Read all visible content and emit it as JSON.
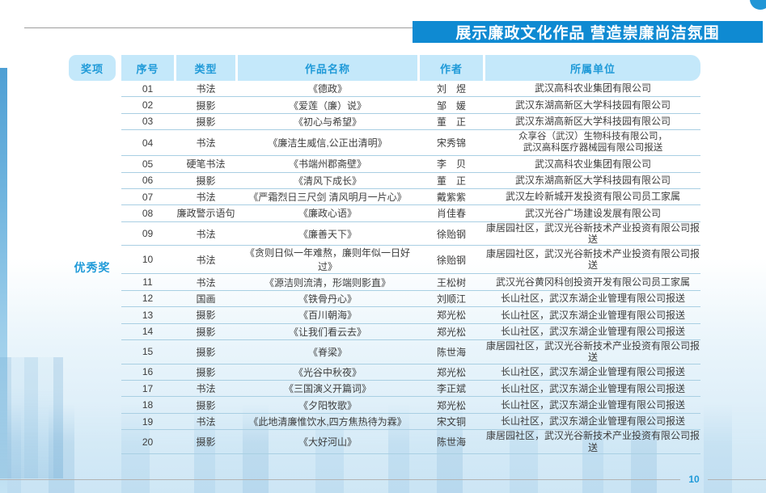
{
  "banner": {
    "title": "展示廉政文化作品 营造崇廉尚洁氛围"
  },
  "page_number": "10",
  "colors": {
    "banner_blue": "#0f8ad2",
    "header_bg": "#c4e8fa",
    "accent_blue": "#1f9ad8",
    "row_line": "#a9cfe3",
    "body_text": "#3d3d3d"
  },
  "table": {
    "headers": {
      "award": "奖项",
      "no": "序号",
      "type": "类型",
      "title": "作品名称",
      "author": "作者",
      "unit": "所属单位"
    },
    "award_label": "优秀奖",
    "rows": [
      {
        "no": "01",
        "type": "书法",
        "title": "《德政》",
        "author": "刘　煜",
        "unit": "武汉高科农业集团有限公司"
      },
      {
        "no": "02",
        "type": "摄影",
        "title": "《爱莲（廉）说》",
        "author": "邹　媛",
        "unit": "武汉东湖高新区大学科技园有限公司"
      },
      {
        "no": "03",
        "type": "摄影",
        "title": "《初心与希望》",
        "author": "董　正",
        "unit": "武汉东湖高新区大学科技园有限公司"
      },
      {
        "no": "04",
        "type": "书法",
        "title": "《廉洁生威信,公正出清明》",
        "author": "宋秀锦",
        "unit": [
          "众享谷（武汉）生物科技有限公司，",
          "武汉高科医疗器械园有限公司报送"
        ]
      },
      {
        "no": "05",
        "type": "硬笔书法",
        "title": "《书端州郡斋壁》",
        "author": "李　贝",
        "unit": "武汉高科农业集团有限公司"
      },
      {
        "no": "06",
        "type": "摄影",
        "title": "《清风下成长》",
        "author": "董　正",
        "unit": "武汉东湖高新区大学科技园有限公司"
      },
      {
        "no": "07",
        "type": "书法",
        "title": "《严霜烈日三尺剑 清风明月一片心》",
        "author": "戴紫紫",
        "unit": "武汉左岭新城开发投资有限公司员工家属"
      },
      {
        "no": "08",
        "type": "廉政警示语句",
        "title": "《廉政心语》",
        "author": "肖佳春",
        "unit": "武汉光谷广场建设发展有限公司"
      },
      {
        "no": "09",
        "type": "书法",
        "title": "《廉善天下》",
        "author": "徐贻钢",
        "unit": "康居园社区，武汉光谷新技术产业投资有限公司报送"
      },
      {
        "no": "10",
        "type": "书法",
        "title": "《贪则日似一年难熬，廉则年似一日好过》",
        "author": "徐贻钢",
        "unit": "康居园社区，武汉光谷新技术产业投资有限公司报送"
      },
      {
        "no": "11",
        "type": "书法",
        "title": "《源洁则流清，形端则影直》",
        "author": "王松树",
        "unit": "武汉光谷黄冈科创投资开发有限公司员工家属"
      },
      {
        "no": "12",
        "type": "国画",
        "title": "《铁骨丹心》",
        "author": "刘顺江",
        "unit": "长山社区，武汉东湖企业管理有限公司报送"
      },
      {
        "no": "13",
        "type": "摄影",
        "title": "《百川朝海》",
        "author": "郑光松",
        "unit": "长山社区，武汉东湖企业管理有限公司报送"
      },
      {
        "no": "14",
        "type": "摄影",
        "title": "《让我们看云去》",
        "author": "郑光松",
        "unit": "长山社区，武汉东湖企业管理有限公司报送"
      },
      {
        "no": "15",
        "type": "摄影",
        "title": "《脊梁》",
        "author": "陈世海",
        "unit": "康居园社区，武汉光谷新技术产业投资有限公司报送"
      },
      {
        "no": "16",
        "type": "摄影",
        "title": "《光谷中秋夜》",
        "author": "郑光松",
        "unit": "长山社区，武汉东湖企业管理有限公司报送"
      },
      {
        "no": "17",
        "type": "书法",
        "title": "《三国演义开篇词》",
        "author": "李正斌",
        "unit": "长山社区，武汉东湖企业管理有限公司报送"
      },
      {
        "no": "18",
        "type": "摄影",
        "title": "《夕阳牧歌》",
        "author": "郑光松",
        "unit": "长山社区，武汉东湖企业管理有限公司报送"
      },
      {
        "no": "19",
        "type": "书法",
        "title": "《此地清廉惟饮水,四方焦热待为霖》",
        "author": "宋文铜",
        "unit": "长山社区，武汉东湖企业管理有限公司报送"
      },
      {
        "no": "20",
        "type": "摄影",
        "title": "《大好河山》",
        "author": "陈世海",
        "unit": "康居园社区，武汉光谷新技术产业投资有限公司报送"
      }
    ]
  }
}
